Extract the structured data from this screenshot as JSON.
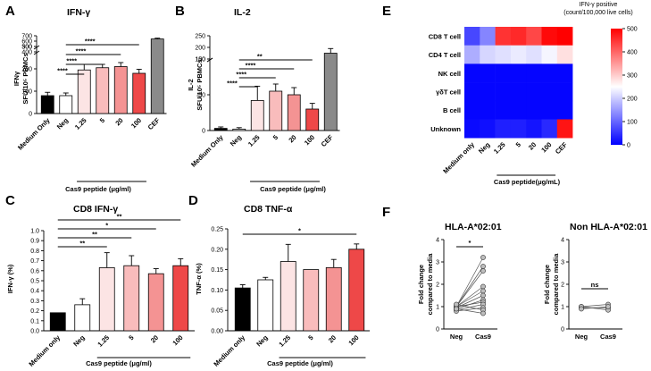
{
  "colors": {
    "medium": "#000000",
    "neg": "#ffffff",
    "c1_25": "#fce4e4",
    "c5": "#f9bcbc",
    "c20": "#f49393",
    "c100": "#ee4848",
    "cef": "#8a8a8a",
    "hm_low": "#0000ff",
    "hm_mid": "#ffffff",
    "hm_high": "#ff0000"
  },
  "chart_data": [
    {
      "id": "A",
      "type": "bar",
      "panel_label": "A",
      "title": "IFN-γ",
      "ylabel_line1": "IFNγ",
      "ylabel_line2": "SFU/10⁵ PBMCs",
      "xlabel": "Cas9 peptide (μg/ml)",
      "categories": [
        "Medium Only",
        "Neg",
        "1.25",
        "5",
        "20",
        "100",
        "CEF"
      ],
      "values": [
        80,
        80,
        195,
        205,
        210,
        180,
        640
      ],
      "errors": [
        15,
        12,
        25,
        15,
        18,
        18,
        15
      ],
      "ylim_lower": [
        0,
        300
      ],
      "ylim_upper": [
        400,
        700
      ],
      "yticks_lower": [
        "0",
        "100",
        "200",
        "300"
      ],
      "yticks_upper": [
        "400",
        "500",
        "600",
        "700"
      ],
      "significance": [
        "****",
        "****",
        "****",
        "****"
      ]
    },
    {
      "id": "B",
      "type": "bar",
      "panel_label": "B",
      "title": "IL-2",
      "ylabel_line1": "IL-2",
      "ylabel_line2": "SFU/10⁵ PBMCs",
      "xlabel": "Cas9 peptide (μg/ml)",
      "categories": [
        "Medium Only",
        "Neg",
        "1.25",
        "5",
        "20",
        "100",
        "CEF"
      ],
      "values": [
        3,
        2,
        42,
        55,
        50,
        30,
        175
      ],
      "errors": [
        2,
        2,
        20,
        10,
        10,
        8,
        20
      ],
      "ylim_lower": [
        0,
        100
      ],
      "ylim_upper": [
        150,
        250
      ],
      "yticks_lower": [
        "0",
        "50",
        "100"
      ],
      "yticks_upper": [
        "150",
        "200",
        "250"
      ],
      "significance": [
        "****",
        "****",
        "****",
        "**"
      ]
    },
    {
      "id": "C",
      "type": "bar",
      "panel_label": "C",
      "title": "CD8 IFN-γ",
      "ylabel": "IFN-γ (%)",
      "xlabel": "Cas9 peptide (μg/ml)",
      "categories": [
        "Medium only",
        "Neg",
        "1.25",
        "5",
        "20",
        "100"
      ],
      "values": [
        0.18,
        0.26,
        0.63,
        0.65,
        0.57,
        0.65
      ],
      "errors": [
        0,
        0.06,
        0.15,
        0.1,
        0.05,
        0.07
      ],
      "ylim": [
        0,
        1.0
      ],
      "yticks": [
        "0.0",
        "0.1",
        "0.2",
        "0.3",
        "0.4",
        "0.5",
        "0.6",
        "0.7",
        "0.8",
        "0.9",
        "1.0"
      ],
      "significance": [
        "**",
        "**",
        "*",
        "**"
      ]
    },
    {
      "id": "D",
      "type": "bar",
      "panel_label": "D",
      "title": "CD8 TNF-α",
      "ylabel": "TNF-α (%)",
      "xlabel": "Cas9 peptide (μg/ml)",
      "categories": [
        "Medium only",
        "Neg",
        "1.25",
        "5",
        "20",
        "100"
      ],
      "values": [
        0.105,
        0.125,
        0.17,
        0.15,
        0.155,
        0.2
      ],
      "errors": [
        0.008,
        0.006,
        0.042,
        0,
        0.02,
        0.013
      ],
      "ylim": [
        0,
        0.25
      ],
      "yticks": [
        "0.00",
        "0.05",
        "0.10",
        "0.15",
        "0.20",
        "0.25"
      ],
      "significance": [
        "*"
      ]
    },
    {
      "id": "E",
      "type": "heatmap",
      "panel_label": "E",
      "colorbar_title_line1": "IFN-γ positive",
      "colorbar_title_line2": "(count/100,000 live cells)",
      "xlabel": "Cas9 peptide(μg/mL)",
      "rows": [
        "CD8 T cell",
        "CD4 T cell",
        "NK cell",
        "γδT cell",
        "B cell",
        "Unknown"
      ],
      "cols": [
        "Medium only",
        "Neg",
        "1.25",
        "5",
        "20",
        "100",
        "CEF"
      ],
      "values": [
        [
          70,
          130,
          450,
          460,
          430,
          490,
          500
        ],
        [
          170,
          210,
          220,
          230,
          220,
          240,
          280
        ],
        [
          5,
          5,
          5,
          5,
          5,
          5,
          5
        ],
        [
          5,
          5,
          5,
          5,
          5,
          5,
          5
        ],
        [
          5,
          5,
          5,
          5,
          5,
          5,
          5
        ],
        [
          10,
          15,
          30,
          30,
          20,
          40,
          480
        ]
      ],
      "vmin": 0,
      "vmax": 500,
      "colorbar_ticks": [
        "0",
        "100",
        "200",
        "300",
        "400",
        "500"
      ]
    },
    {
      "id": "F1",
      "type": "scatter",
      "panel_label": "F",
      "title": "HLA-A*02:01",
      "ylabel_line1": "Fold change",
      "ylabel_line2": "compared to media",
      "categories": [
        "Neg",
        "Cas9"
      ],
      "pairs": [
        [
          1.0,
          3.2
        ],
        [
          1.0,
          2.8
        ],
        [
          1.0,
          2.6
        ],
        [
          1.0,
          1.9
        ],
        [
          1.0,
          1.7
        ],
        [
          0.95,
          1.5
        ],
        [
          0.9,
          1.3
        ],
        [
          1.0,
          1.2
        ],
        [
          0.85,
          1.1
        ],
        [
          0.8,
          0.95
        ],
        [
          1.1,
          0.85
        ],
        [
          0.9,
          0.7
        ]
      ],
      "ylim": [
        0,
        4
      ],
      "yticks": [
        "0",
        "1",
        "2",
        "3",
        "4"
      ],
      "significance": "*"
    },
    {
      "id": "F2",
      "type": "scatter",
      "title": "Non HLA-A*02:01",
      "ylabel_line1": "Fold change",
      "ylabel_line2": "compared to media",
      "categories": [
        "Neg",
        "Cas9"
      ],
      "pairs": [
        [
          1.0,
          1.1
        ],
        [
          0.95,
          0.95
        ],
        [
          1.0,
          0.85
        ],
        [
          0.9,
          1.0
        ]
      ],
      "ylim": [
        0,
        4
      ],
      "yticks": [
        "0",
        "1",
        "2",
        "3",
        "4"
      ],
      "significance": "ns"
    }
  ]
}
